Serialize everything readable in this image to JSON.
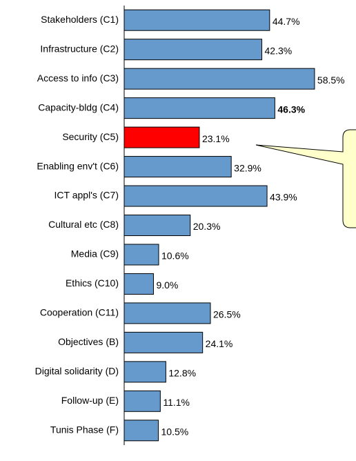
{
  "chart_data": {
    "type": "bar",
    "orientation": "horizontal",
    "categories": [
      "Stakeholders (C1)",
      "Infrastructure (C2)",
      "Access to info (C3)",
      "Capacity-bldg (C4)",
      "Security (C5)",
      "Enabling env't (C6)",
      "ICT appl's (C7)",
      "Cultural etc (C8)",
      "Media (C9)",
      "Ethics (C10)",
      "Cooperation (C11)",
      "Objectives (B)",
      "Digital solidarity (D)",
      "Follow-up (E)",
      "Tunis Phase (F)"
    ],
    "values": [
      44.7,
      42.3,
      58.5,
      46.3,
      23.1,
      32.9,
      43.9,
      20.3,
      10.6,
      9.0,
      26.5,
      24.1,
      12.8,
      11.1,
      10.5
    ],
    "value_labels": [
      "44.7%",
      "42.3%",
      "58.5%",
      "46.3%",
      "23.1%",
      "32.9%",
      "43.9%",
      "20.3%",
      "10.6%",
      "9.0%",
      "26.5%",
      "24.1%",
      "12.8%",
      "11.1%",
      "10.5%"
    ],
    "colors": [
      "#6699cc",
      "#6699cc",
      "#6699cc",
      "#6699cc",
      "#ff0000",
      "#6699cc",
      "#6699cc",
      "#6699cc",
      "#6699cc",
      "#6699cc",
      "#6699cc",
      "#6699cc",
      "#6699cc",
      "#6699cc",
      "#6699cc"
    ],
    "value_label_bold": [
      false,
      false,
      false,
      true,
      false,
      false,
      false,
      false,
      false,
      false,
      false,
      false,
      false,
      false,
      false
    ],
    "xlim": [
      0,
      60
    ]
  }
}
